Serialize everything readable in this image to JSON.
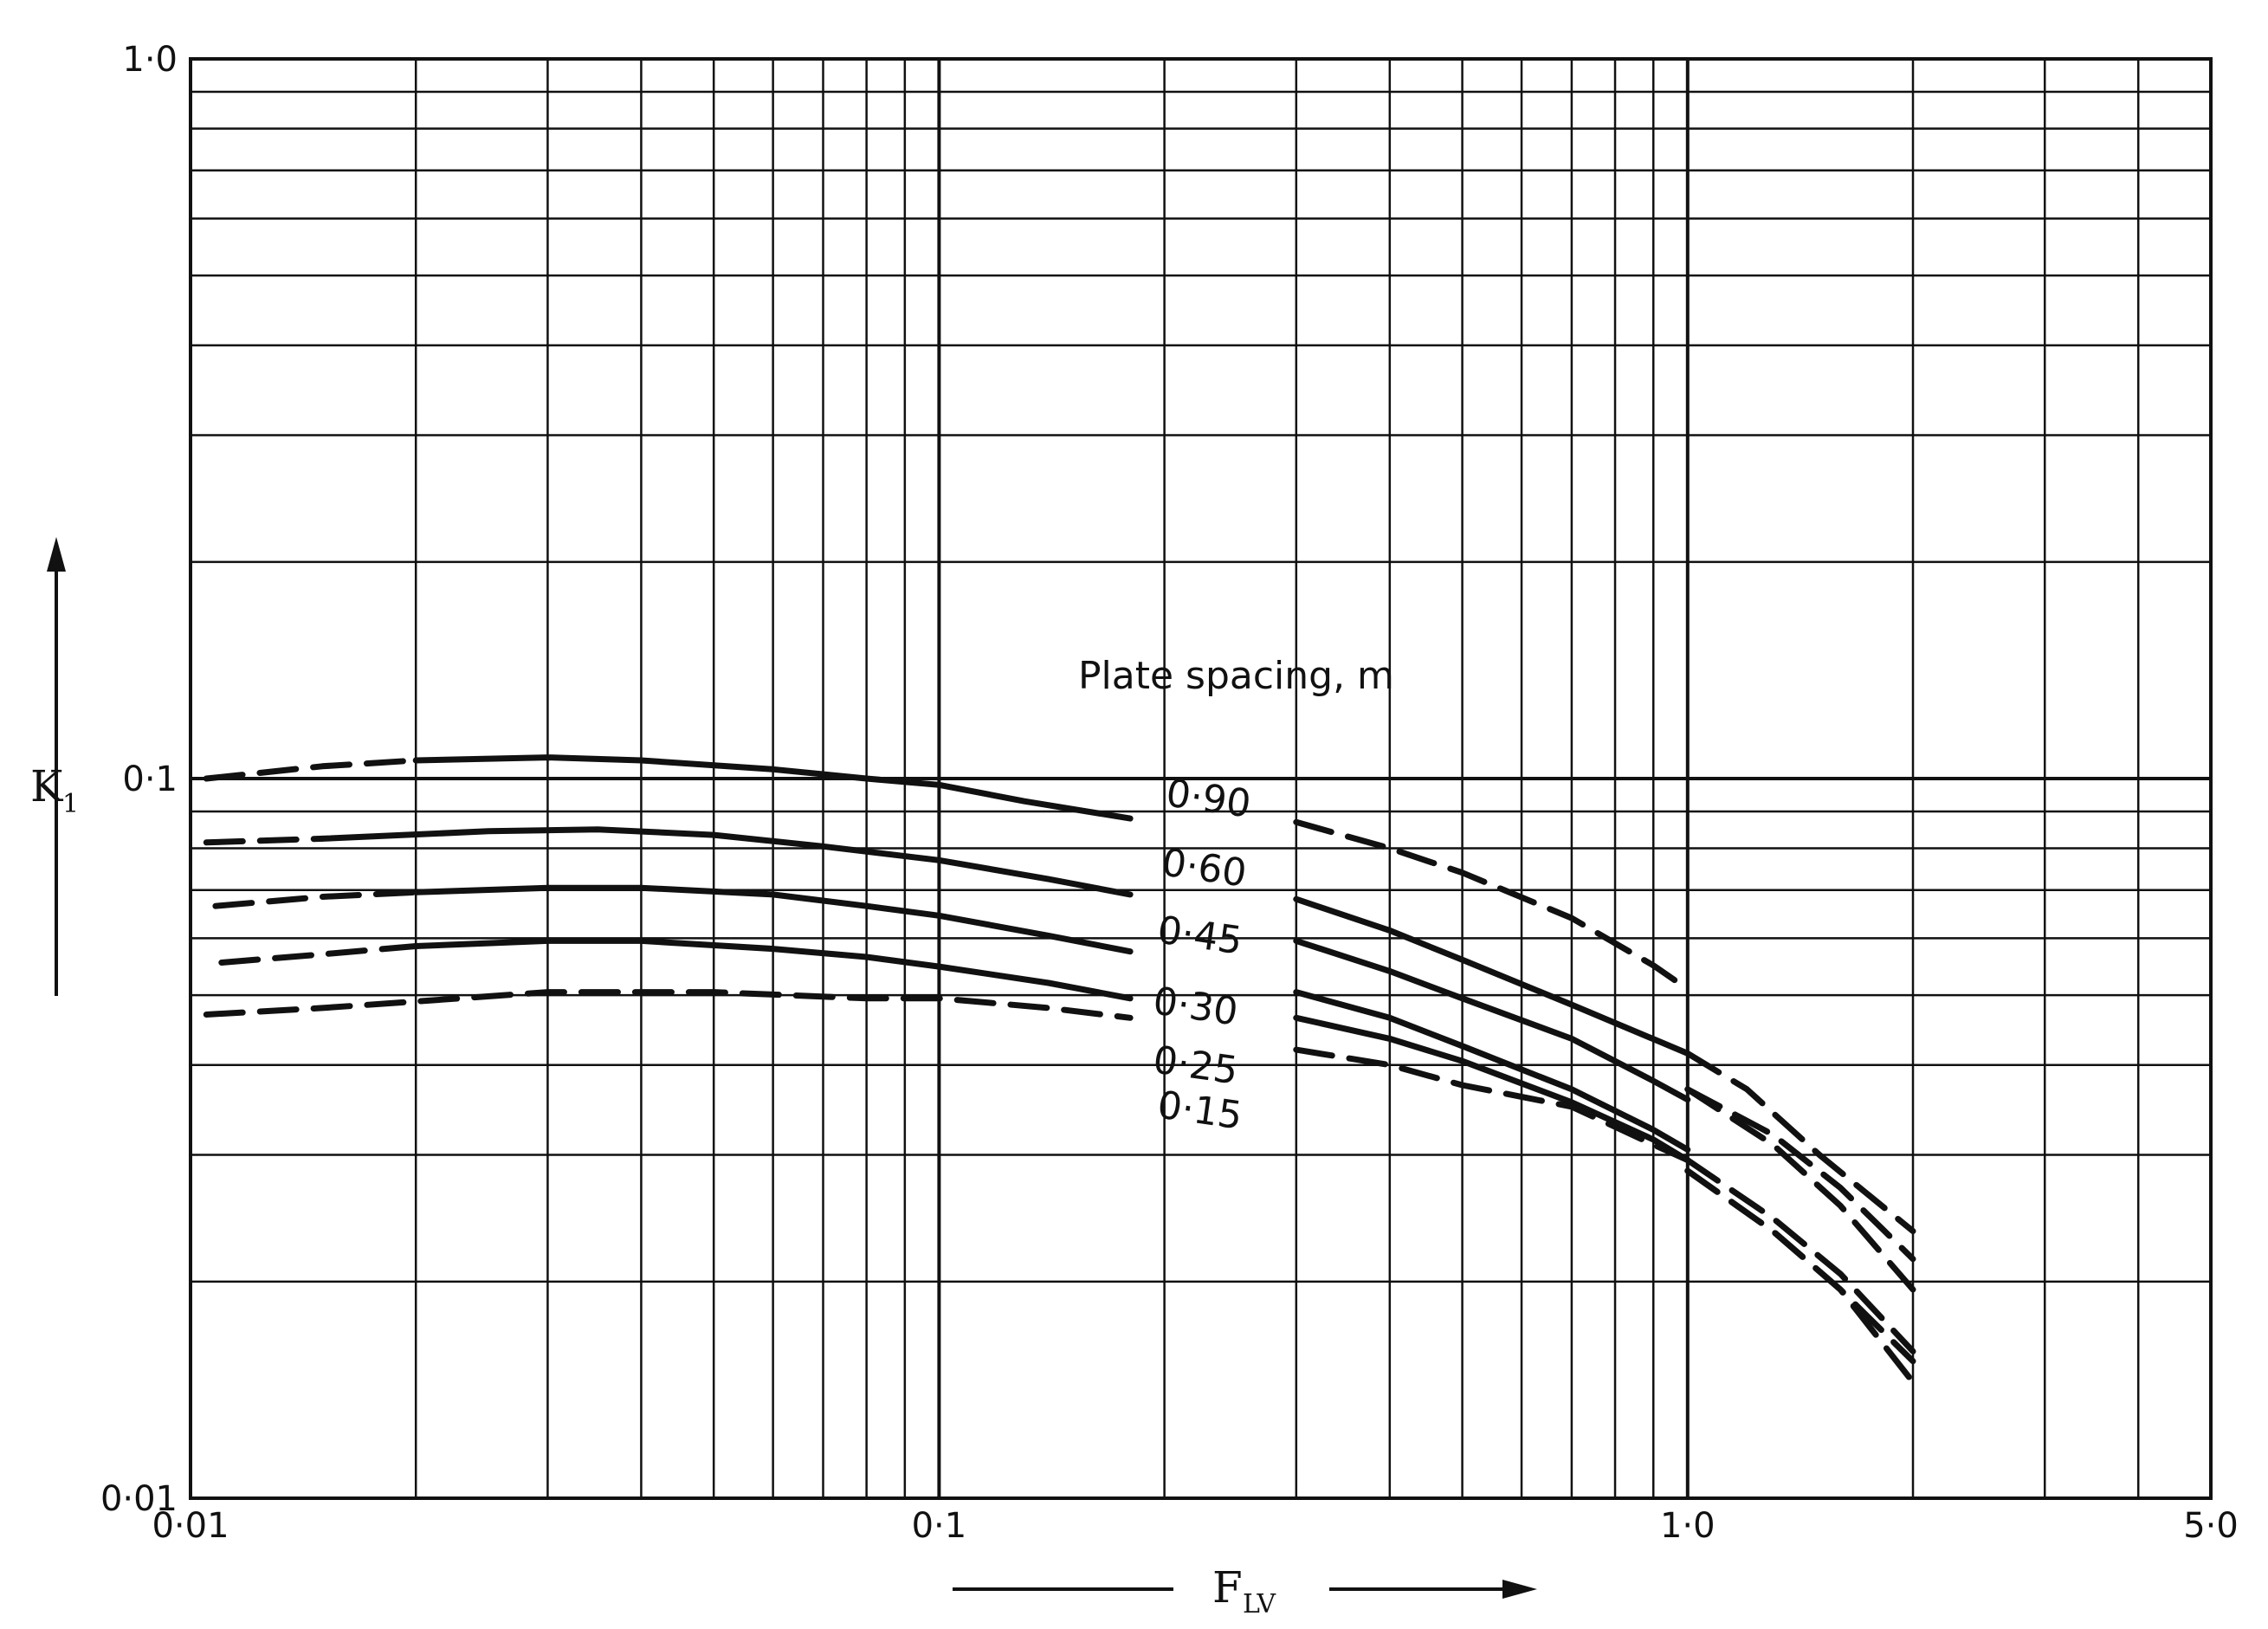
{
  "chart_data": {
    "type": "line",
    "xscale": "log",
    "yscale": "log",
    "xlim": [
      0.01,
      5.0
    ],
    "ylim": [
      0.01,
      1.0
    ],
    "xlabel": "F",
    "xlabel_sub": "LV",
    "ylabel": "K",
    "ylabel_sub": "1",
    "x_tick_labels": [
      "0·01",
      "0·1",
      "1·0",
      "5·0"
    ],
    "y_tick_labels": [
      "0·01",
      "0·1",
      "1·0"
    ],
    "legend_title": "Plate spacing, m",
    "grid": true,
    "series": [
      {
        "name": "0·90",
        "segments": [
          {
            "style": "dashed",
            "points": [
              [
                0.0105,
                0.1
              ],
              [
                0.015,
                0.104
              ],
              [
                0.02,
                0.106
              ]
            ]
          },
          {
            "style": "solid",
            "points": [
              [
                0.02,
                0.106
              ],
              [
                0.03,
                0.107
              ],
              [
                0.04,
                0.106
              ],
              [
                0.06,
                0.103
              ],
              [
                0.08,
                0.1
              ],
              [
                0.1,
                0.098
              ],
              [
                0.13,
                0.093
              ],
              [
                0.18,
                0.088
              ]
            ]
          },
          {
            "style": "dashed",
            "points": [
              [
                0.3,
                0.087
              ],
              [
                0.4,
                0.08
              ],
              [
                0.5,
                0.074
              ],
              [
                0.7,
                0.064
              ],
              [
                0.9,
                0.055
              ],
              [
                1.0,
                0.051
              ]
            ]
          },
          {
            "style": "dashed",
            "points": [
              [
                1.0,
                0.037
              ],
              [
                1.3,
                0.032
              ],
              [
                1.6,
                0.027
              ],
              [
                2.0,
                0.0215
              ]
            ]
          }
        ]
      },
      {
        "name": "0·60",
        "segments": [
          {
            "style": "dashed",
            "points": [
              [
                0.0105,
                0.0815
              ],
              [
                0.015,
                0.0825
              ]
            ]
          },
          {
            "style": "solid",
            "points": [
              [
                0.015,
                0.0825
              ],
              [
                0.025,
                0.0845
              ],
              [
                0.035,
                0.085
              ],
              [
                0.05,
                0.0835
              ],
              [
                0.07,
                0.0805
              ],
              [
                0.1,
                0.077
              ],
              [
                0.14,
                0.0725
              ],
              [
                0.18,
                0.069
              ]
            ]
          },
          {
            "style": "solid",
            "points": [
              [
                0.3,
                0.068
              ],
              [
                0.4,
                0.0615
              ],
              [
                0.5,
                0.056
              ],
              [
                0.7,
                0.0485
              ],
              [
                1.0,
                0.0415
              ]
            ]
          },
          {
            "style": "dashed",
            "points": [
              [
                1.0,
                0.0415
              ],
              [
                1.2,
                0.037
              ],
              [
                1.5,
                0.03
              ],
              [
                2.0,
                0.0235
              ]
            ]
          }
        ]
      },
      {
        "name": "0·45",
        "segments": [
          {
            "style": "dashed",
            "points": [
              [
                0.0108,
                0.0665
              ],
              [
                0.015,
                0.0685
              ],
              [
                0.02,
                0.0695
              ]
            ]
          },
          {
            "style": "solid",
            "points": [
              [
                0.02,
                0.0695
              ],
              [
                0.03,
                0.0705
              ],
              [
                0.04,
                0.0705
              ],
              [
                0.06,
                0.069
              ],
              [
                0.08,
                0.0665
              ],
              [
                0.1,
                0.0645
              ],
              [
                0.14,
                0.0605
              ],
              [
                0.18,
                0.0575
              ]
            ]
          },
          {
            "style": "solid",
            "points": [
              [
                0.3,
                0.0595
              ],
              [
                0.4,
                0.054
              ],
              [
                0.5,
                0.0495
              ],
              [
                0.7,
                0.0435
              ],
              [
                0.9,
                0.038
              ],
              [
                1.0,
                0.0358
              ]
            ]
          },
          {
            "style": "dashed",
            "points": [
              [
                1.0,
                0.037
              ],
              [
                1.3,
                0.031
              ],
              [
                1.6,
                0.0255
              ],
              [
                2.0,
                0.0195
              ]
            ]
          }
        ]
      },
      {
        "name": "0·30",
        "segments": [
          {
            "style": "dashed",
            "points": [
              [
                0.011,
                0.0555
              ],
              [
                0.015,
                0.057
              ],
              [
                0.02,
                0.0585
              ]
            ]
          },
          {
            "style": "solid",
            "points": [
              [
                0.02,
                0.0585
              ],
              [
                0.03,
                0.0595
              ],
              [
                0.04,
                0.0595
              ],
              [
                0.06,
                0.058
              ],
              [
                0.08,
                0.0565
              ],
              [
                0.1,
                0.0548
              ],
              [
                0.14,
                0.052
              ],
              [
                0.18,
                0.0495
              ]
            ]
          },
          {
            "style": "solid",
            "points": [
              [
                0.3,
                0.0505
              ],
              [
                0.4,
                0.0465
              ],
              [
                0.5,
                0.0425
              ],
              [
                0.7,
                0.037
              ],
              [
                0.9,
                0.0325
              ],
              [
                1.0,
                0.0305
              ]
            ]
          },
          {
            "style": "dashed",
            "points": [
              [
                1.0,
                0.0295
              ],
              [
                1.3,
                0.0245
              ],
              [
                1.6,
                0.0205
              ],
              [
                2.0,
                0.016
              ]
            ]
          }
        ]
      },
      {
        "name": "0·25",
        "segments": [
          {
            "style": "solid",
            "points": [
              [
                0.3,
                0.0465
              ],
              [
                0.4,
                0.0435
              ],
              [
                0.5,
                0.0405
              ],
              [
                0.7,
                0.0355
              ],
              [
                0.9,
                0.0315
              ],
              [
                1.0,
                0.0295
              ]
            ]
          },
          {
            "style": "dashed",
            "points": [
              [
                1.0,
                0.0285
              ],
              [
                1.3,
                0.0235
              ],
              [
                1.6,
                0.0195
              ],
              [
                2.0,
                0.0155
              ]
            ]
          }
        ]
      },
      {
        "name": "0·15",
        "segments": [
          {
            "style": "dashed",
            "points": [
              [
                0.0105,
                0.047
              ],
              [
                0.015,
                0.048
              ],
              [
                0.02,
                0.049
              ],
              [
                0.03,
                0.0505
              ],
              [
                0.05,
                0.0505
              ],
              [
                0.08,
                0.0495
              ],
              [
                0.1,
                0.0495
              ],
              [
                0.14,
                0.048
              ],
              [
                0.18,
                0.0465
              ]
            ]
          },
          {
            "style": "dashed",
            "points": [
              [
                0.3,
                0.042
              ],
              [
                0.4,
                0.04
              ],
              [
                0.5,
                0.0375
              ],
              [
                0.7,
                0.035
              ],
              [
                0.9,
                0.031
              ],
              [
                1.0,
                0.0295
              ]
            ]
          },
          {
            "style": "dashed",
            "points": [
              [
                1.0,
                0.0285
              ],
              [
                1.3,
                0.0235
              ],
              [
                1.6,
                0.0195
              ],
              [
                2.0,
                0.0145
              ]
            ]
          }
        ]
      }
    ]
  }
}
